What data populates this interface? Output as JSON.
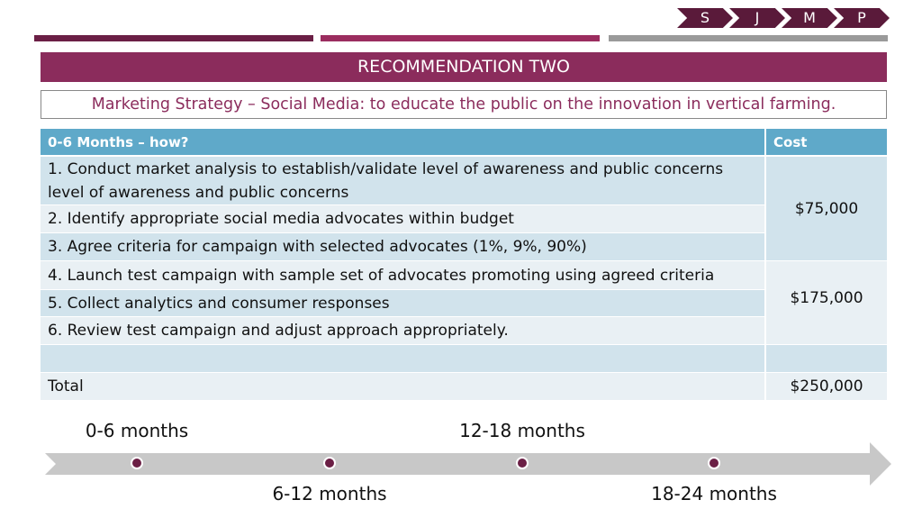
{
  "nav": {
    "items": [
      "S",
      "J",
      "M",
      "P"
    ]
  },
  "header": {
    "title": "RECOMMENDATION TWO",
    "subtitle": "Marketing Strategy – Social Media: to educate the public on the innovation in vertical farming."
  },
  "table": {
    "columns": [
      "0-6 Months – how?",
      "Cost"
    ],
    "rows": [
      "1. Conduct market analysis to establish/validate level of awareness and public concerns level of awareness and public concerns",
      "2. Identify appropriate social media advocates within budget",
      "3. Agree criteria for campaign with selected advocates (1%, 9%, 90%)",
      "4. Launch test campaign with sample set of advocates promoting using agreed criteria",
      "5. Collect analytics and consumer responses",
      "6. Review test campaign and adjust approach appropriately."
    ],
    "costs": [
      "$75,000",
      "$175,000"
    ],
    "total": {
      "label": "Total",
      "cost": "$250,000"
    }
  },
  "timeline": {
    "labels": [
      "0-6 months",
      "6-12 months",
      "12-18 months",
      "18-24 months"
    ]
  }
}
